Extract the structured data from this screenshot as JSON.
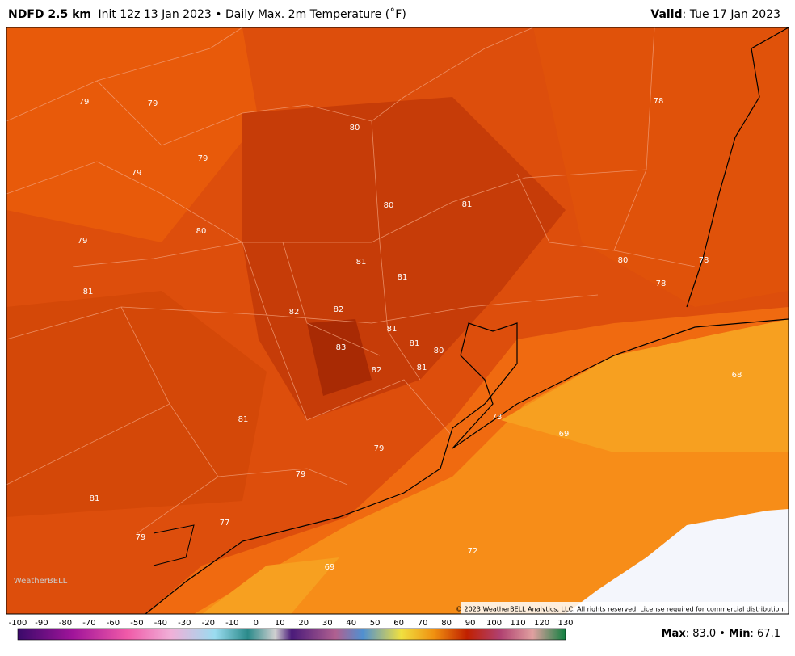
{
  "header": {
    "model": "NDFD 2.5 km",
    "title": "Init 12z 13 Jan 2023 • Daily Max. 2m Temperature (˚F)",
    "valid_label": "Valid",
    "valid_value": ": Tue 17 Jan 2023"
  },
  "map": {
    "labels": [
      79,
      79,
      79,
      79,
      80,
      80,
      81,
      78,
      79,
      80,
      81,
      81,
      81,
      82,
      82,
      81,
      81,
      80,
      83,
      82,
      81,
      80,
      78,
      78,
      68,
      73,
      69,
      81,
      79,
      79,
      81,
      77,
      79,
      72,
      69
    ],
    "logo": "WeatherBELL",
    "copyright": "© 2023 WeatherBELL Analytics, LLC. All rights reserved. License required for commercial distribution."
  },
  "colorbar": {
    "ticks": [
      -100,
      -90,
      -80,
      -70,
      -60,
      -50,
      -40,
      -30,
      -20,
      -10,
      0,
      10,
      20,
      30,
      40,
      50,
      60,
      70,
      80,
      90,
      100,
      110,
      120,
      130
    ]
  },
  "footer": {
    "max_label": "Max",
    "max_value": ": 83.0",
    "separator": "•",
    "min_label": "Min",
    "min_value": ": 67.1"
  }
}
